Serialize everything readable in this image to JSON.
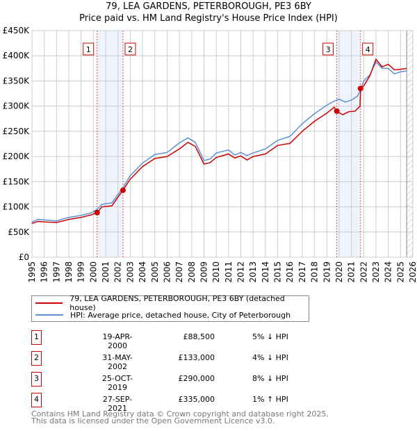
{
  "chart_data": {
    "type": "line",
    "title": "79, LEA GARDENS, PETERBOROUGH, PE3 6BY",
    "subtitle": "Price paid vs. HM Land Registry's House Price Index (HPI)",
    "xlabel": "",
    "ylabel": "",
    "xlim": [
      1995,
      2026
    ],
    "ylim": [
      0,
      450000
    ],
    "yticks": [
      0,
      50000,
      100000,
      150000,
      200000,
      250000,
      300000,
      350000,
      400000,
      450000
    ],
    "ytick_labels": [
      "£0",
      "£50K",
      "£100K",
      "£150K",
      "£200K",
      "£250K",
      "£300K",
      "£350K",
      "£400K",
      "£450K"
    ],
    "xticks": [
      "1995",
      "1996",
      "1997",
      "1998",
      "1999",
      "2000",
      "2001",
      "2002",
      "2003",
      "2004",
      "2005",
      "2006",
      "2007",
      "2008",
      "2009",
      "2010",
      "2011",
      "2012",
      "2013",
      "2014",
      "2015",
      "2016",
      "2017",
      "2018",
      "2019",
      "2020",
      "2021",
      "2022",
      "2023",
      "2024",
      "2025",
      "2026"
    ],
    "grid": true,
    "series": [
      {
        "name": "79, LEA GARDENS, PETERBOROUGH, PE3 6BY (detached house)",
        "color": "#cc0000",
        "x": [
          1995,
          1995.5,
          1996,
          1997,
          1997.5,
          1998,
          1999,
          1999.8,
          2000.3,
          2000.7,
          2001.5,
          2002.4,
          2003,
          2004,
          2005,
          2006,
          2007,
          2007.7,
          2008.3,
          2009,
          2009.5,
          2010,
          2011,
          2011.5,
          2012,
          2012.5,
          2013,
          2014,
          2015,
          2016,
          2017,
          2018,
          2019,
          2019.6,
          2019.8,
          2020.3,
          2020.8,
          2021.3,
          2021.7,
          2021.75,
          2022,
          2022.5,
          2023,
          2023.5,
          2024,
          2024.5,
          2025,
          2025.5
        ],
        "y": [
          67000,
          71000,
          70000,
          69000,
          72000,
          75000,
          79000,
          84000,
          88500,
          100000,
          102000,
          133000,
          155000,
          180000,
          196000,
          200000,
          215000,
          228000,
          220000,
          185000,
          188000,
          198000,
          205000,
          197000,
          201000,
          193000,
          200000,
          205000,
          222000,
          226000,
          250000,
          270000,
          286000,
          298000,
          290000,
          283000,
          289000,
          290000,
          300000,
          335000,
          340000,
          360000,
          393000,
          378000,
          383000,
          372000,
          373000,
          375000
        ]
      },
      {
        "name": "HPI: Average price, detached house, City of Peterborough",
        "color": "#5b8fd6",
        "x": [
          1995,
          1995.5,
          1996,
          1997,
          1997.5,
          1998,
          1999,
          1999.8,
          2000.3,
          2000.7,
          2001.5,
          2002.4,
          2003,
          2004,
          2005,
          2006,
          2007,
          2007.7,
          2008.3,
          2009,
          2009.5,
          2010,
          2011,
          2011.5,
          2012,
          2012.5,
          2013,
          2014,
          2015,
          2016,
          2017,
          2018,
          2019,
          2019.6,
          2020,
          2020.5,
          2021,
          2021.5,
          2021.75,
          2022,
          2022.5,
          2023,
          2023.5,
          2024,
          2024.5,
          2025,
          2025.5
        ],
        "y": [
          70000,
          75000,
          74000,
          72000,
          76000,
          79000,
          83000,
          88000,
          95000,
          105000,
          108000,
          138000,
          162000,
          187000,
          204000,
          208000,
          227000,
          237000,
          228000,
          192000,
          195000,
          207000,
          213000,
          203000,
          208000,
          202000,
          207000,
          215000,
          232000,
          240000,
          265000,
          285000,
          302000,
          310000,
          314000,
          308000,
          312000,
          320000,
          332000,
          350000,
          362000,
          388000,
          375000,
          375000,
          364000,
          368000,
          370000
        ]
      }
    ],
    "sales": [
      {
        "label": "1",
        "x": 2000.3,
        "y": 88500
      },
      {
        "label": "2",
        "x": 2002.41,
        "y": 133000
      },
      {
        "label": "3",
        "x": 2019.81,
        "y": 290000
      },
      {
        "label": "4",
        "x": 2021.74,
        "y": 335000
      }
    ],
    "shaded_ranges": [
      [
        2000.3,
        2002.41
      ],
      [
        2019.81,
        2021.74
      ]
    ],
    "forecast_start": 2025.5
  },
  "legend": {
    "series1": "79, LEA GARDENS, PETERBOROUGH, PE3 6BY (detached house)",
    "series2": "HPI: Average price, detached house, City of Peterborough"
  },
  "transactions": [
    {
      "num": "1",
      "date": "19-APR-2000",
      "price": "£88,500",
      "hpi": "5% ↓ HPI"
    },
    {
      "num": "2",
      "date": "31-MAY-2002",
      "price": "£133,000",
      "hpi": "4% ↓ HPI"
    },
    {
      "num": "3",
      "date": "25-OCT-2019",
      "price": "£290,000",
      "hpi": "8% ↓ HPI"
    },
    {
      "num": "4",
      "date": "27-SEP-2021",
      "price": "£335,000",
      "hpi": "1% ↑ HPI"
    }
  ],
  "footer": {
    "line1": "Contains HM Land Registry data © Crown copyright and database right 2025.",
    "line2": "This data is licensed under the Open Government Licence v3.0."
  }
}
